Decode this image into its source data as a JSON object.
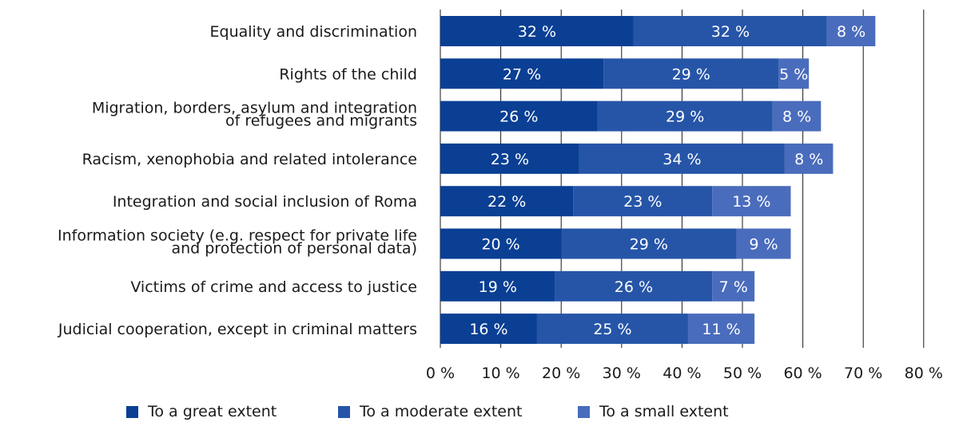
{
  "chart_data": {
    "type": "bar",
    "orientation": "horizontal",
    "stacked": true,
    "categories": [
      [
        "Equality and discrimination"
      ],
      [
        "Rights of the child"
      ],
      [
        "Migration, borders, asylum and integration",
        "of refugees and migrants"
      ],
      [
        "Racism, xenophobia and related intolerance"
      ],
      [
        "Integration and social inclusion of Roma"
      ],
      [
        "Information society (e.g. respect for private life",
        "and protection of personal data)"
      ],
      [
        "Victims of crime and access to justice"
      ],
      [
        "Judicial cooperation, except in criminal matters"
      ]
    ],
    "series": [
      {
        "name": "To a great extent",
        "color": "#0a3f94",
        "values": [
          32,
          27,
          26,
          23,
          22,
          20,
          19,
          16
        ]
      },
      {
        "name": "To a moderate extent",
        "color": "#2655a8",
        "values": [
          32,
          29,
          29,
          34,
          23,
          29,
          26,
          25
        ]
      },
      {
        "name": "To a small extent",
        "color": "#4a6cbc",
        "values": [
          8,
          5,
          8,
          8,
          13,
          9,
          7,
          11
        ]
      }
    ],
    "value_suffix": " %",
    "xlim": [
      0,
      80
    ],
    "xticks": [
      0,
      10,
      20,
      30,
      40,
      50,
      60,
      70,
      80
    ],
    "tick_labels": [
      "0 %",
      "10 %",
      "20 %",
      "30 %",
      "40 %",
      "50 %",
      "60 %",
      "70 %",
      "80 %"
    ],
    "grid": true,
    "legend_position": "bottom"
  }
}
